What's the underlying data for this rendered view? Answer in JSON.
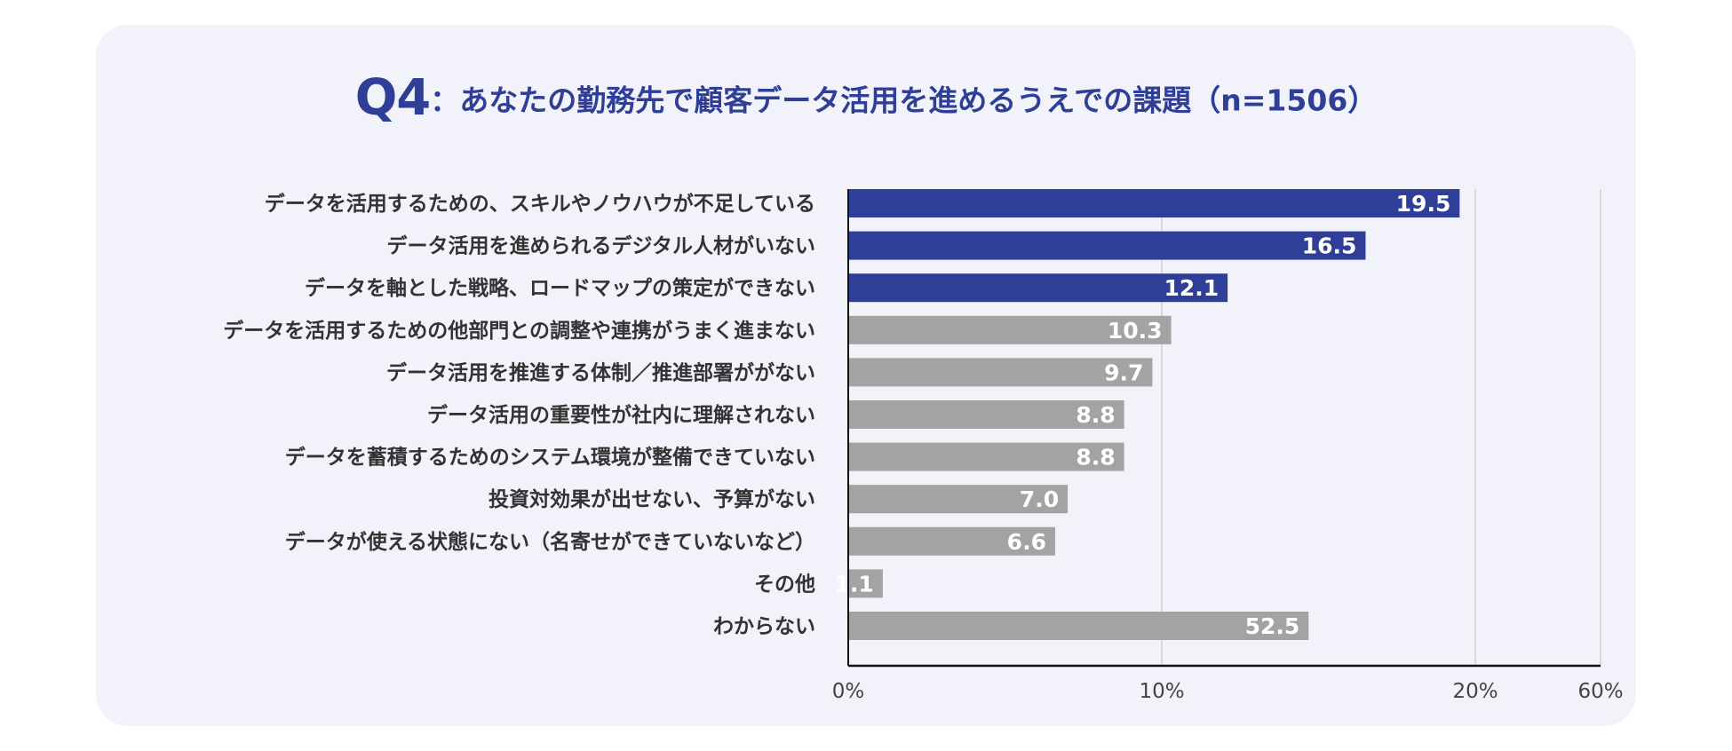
{
  "header": {
    "q_label": "Q4",
    "title": "：あなたの勤務先で顧客データ活用を進めるうえでの課題（n=1506）"
  },
  "colors": {
    "highlight": "#2f3e96",
    "normal": "#a3a3a3",
    "background": "#f2f3fa"
  },
  "chart_data": {
    "type": "bar",
    "orientation": "horizontal",
    "title": "Q4：あなたの勤務先で顧客データ活用を進めるうえでの課題（n=1506）",
    "categories": [
      "データを活用するための、スキルやノウハウが不足している",
      "データ活用を進められるデジタル人材がいない",
      "データを軸とした戦略、ロードマップの策定ができない",
      "データを活用するための他部門との調整や連携がうまく進まない",
      "データ活用を推進する体制／推進部署ががない",
      "データ活用の重要性が社内に理解されない",
      "データを蓄積するためのシステム環境が整備できていない",
      "投資対効果が出せない、予算がない",
      "データが使える状態にない（名寄せができていないなど）",
      "その他",
      "わからない"
    ],
    "values": [
      19.5,
      16.5,
      12.1,
      10.3,
      9.7,
      8.8,
      8.8,
      7.0,
      6.6,
      1.1,
      52.5
    ],
    "value_labels": [
      "19.5",
      "16.5",
      "12.1",
      "10.3",
      "9.7",
      "8.8",
      "8.8",
      "7.0",
      "6.6",
      "1.1",
      "52.5"
    ],
    "highlight": [
      true,
      true,
      true,
      false,
      false,
      false,
      false,
      false,
      false,
      false,
      false
    ],
    "axis_break": {
      "from": 20,
      "to": 60
    },
    "xlim": [
      0,
      60
    ],
    "xticks": [
      0,
      10,
      20,
      60
    ],
    "xtick_labels": [
      "0%",
      "10%",
      "20%",
      "60%"
    ],
    "xlabel": "",
    "ylabel": "",
    "grid": true
  }
}
